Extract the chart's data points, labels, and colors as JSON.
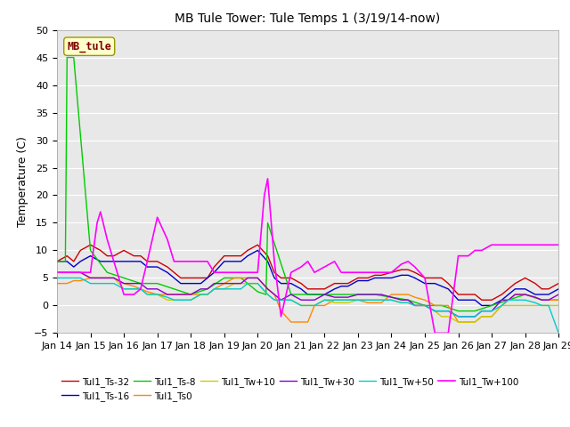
{
  "title": "MB Tule Tower: Tule Temps 1 (3/19/14-now)",
  "ylabel": "Temperature (C)",
  "ylim": [
    -5,
    50
  ],
  "yticks": [
    -5,
    0,
    5,
    10,
    15,
    20,
    25,
    30,
    35,
    40,
    45,
    50
  ],
  "xtick_labels": [
    "Jan 14",
    "Jan 15",
    "Jan 16",
    "Jan 17",
    "Jan 18",
    "Jan 19",
    "Jan 20",
    "Jan 21",
    "Jan 22",
    "Jan 23",
    "Jan 24",
    "Jan 25",
    "Jan 26",
    "Jan 27",
    "Jan 28",
    "Jan 29"
  ],
  "fig_bg": "#ffffff",
  "plot_bg": "#e8e8e8",
  "series_order": [
    "Tul1_Ts-32",
    "Tul1_Ts-16",
    "Tul1_Ts-8",
    "Tul1_Ts0",
    "Tul1_Tw+10",
    "Tul1_Tw+30",
    "Tul1_Tw+50",
    "Tul1_Tw+100"
  ],
  "legend_order": [
    "Tul1_Ts-32",
    "Tul1_Ts-16",
    "Tul1_Ts-8",
    "Tul1_Ts0",
    "Tul1_Tw+10",
    "Tul1_Tw+30",
    "Tul1_Tw+50",
    "Tul1_Tw+100"
  ],
  "series": {
    "Tul1_Ts-32": {
      "color": "#cc0000",
      "lw": 1.0
    },
    "Tul1_Ts-16": {
      "color": "#0000cc",
      "lw": 1.0
    },
    "Tul1_Ts-8": {
      "color": "#00cc00",
      "lw": 1.0
    },
    "Tul1_Ts0": {
      "color": "#ff8800",
      "lw": 1.0
    },
    "Tul1_Tw+10": {
      "color": "#cccc00",
      "lw": 1.0
    },
    "Tul1_Tw+30": {
      "color": "#8800cc",
      "lw": 1.0
    },
    "Tul1_Tw+50": {
      "color": "#00cccc",
      "lw": 1.0
    },
    "Tul1_Tw+100": {
      "color": "#ff00ff",
      "lw": 1.2
    }
  },
  "Tul1_Ts-32_x": [
    0,
    0.3,
    0.5,
    0.7,
    1,
    1.3,
    1.5,
    1.7,
    2,
    2.3,
    2.5,
    2.7,
    3,
    3.3,
    3.5,
    3.7,
    4,
    4.3,
    4.5,
    4.7,
    5,
    5.3,
    5.5,
    5.7,
    6,
    6.3,
    6.5,
    6.7,
    7,
    7.3,
    7.5,
    7.7,
    8,
    8.3,
    8.5,
    8.7,
    9,
    9.3,
    9.5,
    9.7,
    10,
    10.3,
    10.5,
    10.7,
    11,
    11.3,
    11.5,
    11.7,
    12,
    12.3,
    12.5,
    12.7,
    13,
    13.3,
    13.5,
    13.7,
    14,
    14.3,
    14.5,
    14.7,
    15
  ],
  "Tul1_Ts-32_y": [
    8,
    9,
    8,
    10,
    11,
    10,
    9,
    9,
    10,
    9,
    9,
    8,
    8,
    7,
    6,
    5,
    5,
    5,
    5,
    7,
    9,
    9,
    9,
    10,
    11,
    9,
    6,
    5,
    5,
    4,
    3,
    3,
    3,
    4,
    4,
    4,
    5,
    5,
    5.5,
    5.5,
    6,
    6.5,
    6.5,
    6,
    5,
    5,
    5,
    4,
    2,
    2,
    2,
    1,
    1,
    2,
    3,
    4,
    5,
    4,
    3,
    3,
    4
  ],
  "Tul1_Ts-16_x": [
    0,
    0.3,
    0.5,
    0.7,
    1,
    1.3,
    1.5,
    1.7,
    2,
    2.3,
    2.5,
    2.7,
    3,
    3.3,
    3.5,
    3.7,
    4,
    4.3,
    4.5,
    4.7,
    5,
    5.3,
    5.5,
    5.7,
    6,
    6.3,
    6.5,
    6.7,
    7,
    7.3,
    7.5,
    7.7,
    8,
    8.3,
    8.5,
    8.7,
    9,
    9.3,
    9.5,
    9.7,
    10,
    10.3,
    10.5,
    10.7,
    11,
    11.3,
    11.5,
    11.7,
    12,
    12.3,
    12.5,
    12.7,
    13,
    13.3,
    13.5,
    13.7,
    14,
    14.3,
    14.5,
    14.7,
    15
  ],
  "Tul1_Ts-16_y": [
    8,
    8,
    7,
    8,
    9,
    8,
    8,
    8,
    8,
    8,
    8,
    7,
    7,
    6,
    5,
    4,
    4,
    4,
    5,
    6,
    8,
    8,
    8,
    9,
    10,
    8,
    5,
    4,
    4,
    3,
    2,
    2,
    2,
    3,
    3.5,
    3.5,
    4.5,
    4.5,
    5,
    5,
    5,
    5.5,
    5.5,
    5,
    4,
    4,
    3.5,
    3,
    1,
    1,
    1,
    0,
    0,
    1,
    2,
    3,
    3,
    2,
    2,
    2,
    3
  ],
  "Tul1_Ts-8_x": [
    0,
    0.25,
    0.3,
    0.5,
    1,
    1.5,
    2,
    2.5,
    3,
    3.5,
    4,
    4.5,
    5,
    5.5,
    6,
    6.25,
    6.3,
    7,
    7.5,
    8,
    8.5,
    9,
    9.5,
    10,
    10.5,
    11,
    11.5,
    12,
    12.5,
    13,
    13.5,
    14,
    14.5,
    15
  ],
  "Tul1_Ts-8_y": [
    8,
    8,
    45,
    45,
    10,
    6,
    5,
    4,
    4,
    3,
    2,
    3,
    5,
    5,
    2.5,
    2,
    15,
    2,
    2,
    2,
    2,
    2,
    2,
    1.5,
    1,
    0,
    0,
    -1,
    -1,
    0,
    1,
    2,
    1,
    1
  ],
  "Tul1_Ts0_x": [
    0,
    0.3,
    0.5,
    0.7,
    1,
    1.3,
    1.5,
    1.7,
    2,
    2.3,
    2.5,
    2.7,
    3,
    3.3,
    3.5,
    3.7,
    4,
    4.3,
    4.5,
    4.7,
    5,
    5.3,
    5.5,
    5.7,
    6,
    6.3,
    6.5,
    6.7,
    7,
    7.3,
    7.5,
    7.7,
    8,
    8.3,
    8.5,
    8.7,
    9,
    9.3,
    9.5,
    9.7,
    10,
    10.3,
    10.5,
    10.7,
    11,
    11.3,
    11.5,
    11.7,
    12,
    12.3,
    12.5,
    12.7,
    13,
    13.3,
    13.5,
    13.7,
    14,
    14.3,
    14.5,
    14.7,
    15
  ],
  "Tul1_Ts0_y": [
    4,
    4,
    4.5,
    4.5,
    5,
    5,
    5,
    5,
    4,
    3.5,
    3,
    2.5,
    2,
    2,
    2,
    2,
    2,
    2,
    2,
    3,
    4,
    5,
    5,
    5,
    5,
    3,
    2,
    -1,
    -3,
    -3,
    -3,
    0,
    0,
    1,
    1,
    1,
    1,
    0.5,
    0.5,
    0.5,
    2,
    2,
    2,
    1.5,
    1,
    0,
    0,
    0,
    -3,
    -3,
    -3,
    -2,
    -2,
    0,
    1,
    2,
    2,
    1.5,
    1,
    1,
    1
  ],
  "Tul1_Tw+10_x": [
    0,
    0.3,
    0.5,
    0.7,
    1,
    1.3,
    1.5,
    1.7,
    2,
    2.3,
    2.5,
    2.7,
    3,
    3.3,
    3.5,
    3.7,
    4,
    4.3,
    4.5,
    4.7,
    5,
    5.3,
    5.5,
    5.7,
    6,
    6.3,
    6.5,
    6.7,
    7,
    7.3,
    7.5,
    7.7,
    8,
    8.3,
    8.5,
    8.7,
    9,
    9.3,
    9.5,
    9.7,
    10,
    10.3,
    10.5,
    10.7,
    11,
    11.3,
    11.5,
    11.7,
    12,
    12.3,
    12.5,
    12.7,
    13,
    13.3,
    13.5,
    13.7,
    14,
    14.3,
    14.5,
    14.7,
    15
  ],
  "Tul1_Tw+10_y": [
    6,
    6,
    6,
    6,
    5,
    5,
    5,
    5,
    3,
    3,
    3,
    2,
    2,
    1,
    1,
    1,
    1,
    2,
    2,
    3,
    3,
    4,
    4,
    4,
    4,
    2,
    1,
    1,
    1,
    0,
    0,
    0,
    1,
    0.5,
    0.5,
    0.5,
    1,
    1,
    1,
    1,
    1,
    0.5,
    0.5,
    0,
    0,
    -1,
    -2,
    -2,
    -3,
    -3,
    -3,
    -2,
    -2,
    0,
    0,
    0,
    0,
    0,
    0,
    0,
    0
  ],
  "Tul1_Tw+30_x": [
    0,
    0.3,
    0.5,
    0.7,
    1,
    1.3,
    1.5,
    1.7,
    2,
    2.3,
    2.5,
    2.7,
    3,
    3.3,
    3.5,
    3.7,
    4,
    4.3,
    4.5,
    4.7,
    5,
    5.3,
    5.5,
    5.7,
    6,
    6.3,
    6.5,
    6.7,
    7,
    7.3,
    7.5,
    7.7,
    8,
    8.3,
    8.5,
    8.7,
    9,
    9.3,
    9.5,
    9.7,
    10,
    10.3,
    10.5,
    10.7,
    11,
    11.3,
    11.5,
    11.7,
    12,
    12.3,
    12.5,
    12.7,
    13,
    13.3,
    13.5,
    13.7,
    14,
    14.3,
    14.5,
    14.7,
    15
  ],
  "Tul1_Tw+30_y": [
    6,
    6,
    6,
    6,
    5,
    5,
    5,
    5,
    4,
    4,
    4,
    3,
    3,
    2,
    2,
    2,
    2,
    3,
    3,
    4,
    4,
    4,
    4,
    5,
    5,
    3,
    2,
    1,
    2,
    1,
    1,
    1,
    2,
    1.5,
    1.5,
    1.5,
    2,
    2,
    2,
    2,
    1.5,
    1,
    1,
    0,
    0,
    -1,
    -1,
    -1,
    -2,
    -2,
    -2,
    -1,
    -1,
    1,
    1,
    2,
    2,
    1.5,
    1,
    1,
    2
  ],
  "Tul1_Tw+50_x": [
    0,
    0.3,
    0.5,
    0.7,
    1,
    1.3,
    1.5,
    1.7,
    2,
    2.3,
    2.5,
    2.7,
    3,
    3.3,
    3.5,
    3.7,
    4,
    4.3,
    4.5,
    4.7,
    5,
    5.3,
    5.5,
    5.7,
    6,
    6.3,
    6.5,
    6.7,
    7,
    7.3,
    7.5,
    7.7,
    8,
    8.3,
    8.5,
    8.7,
    9,
    9.3,
    9.5,
    9.7,
    10,
    10.3,
    10.5,
    10.7,
    11,
    11.3,
    11.5,
    11.7,
    12,
    12.3,
    12.5,
    12.7,
    13,
    13.3,
    13.5,
    13.7,
    14,
    14.3,
    14.5,
    14.7,
    15
  ],
  "Tul1_Tw+50_y": [
    5,
    5,
    5,
    5,
    4,
    4,
    4,
    4,
    3,
    3,
    3,
    2,
    2,
    1.5,
    1,
    1,
    1,
    2,
    2,
    3,
    3,
    3,
    3,
    4,
    4,
    2,
    1,
    1,
    1,
    0,
    0,
    0,
    1,
    1,
    1,
    1,
    1,
    1,
    1,
    1,
    1,
    0.5,
    0.5,
    0,
    0,
    -1,
    -1,
    -1,
    -2,
    -2,
    -2,
    -1,
    -1,
    0,
    1,
    1,
    1,
    0.5,
    0,
    0,
    -5
  ],
  "Tul1_Tw+100_x": [
    0,
    0.3,
    0.5,
    0.7,
    1,
    1.2,
    1.3,
    1.5,
    1.7,
    2,
    2.3,
    2.5,
    2.7,
    3,
    3.3,
    3.5,
    3.7,
    4,
    4.3,
    4.5,
    4.7,
    5,
    5.3,
    5.5,
    5.7,
    6,
    6.2,
    6.3,
    6.5,
    6.7,
    7,
    7.3,
    7.5,
    7.7,
    8,
    8.3,
    8.5,
    8.7,
    9,
    9.3,
    9.5,
    9.7,
    10,
    10.2,
    10.3,
    10.5,
    10.7,
    11,
    11.3,
    11.5,
    11.7,
    12,
    12.3,
    12.5,
    12.7,
    13,
    13.3,
    13.5,
    13.7,
    14,
    14.3,
    14.5,
    14.7,
    15
  ],
  "Tul1_Tw+100_y": [
    6,
    6,
    6,
    6,
    6,
    15,
    17,
    12,
    8,
    2,
    2,
    3,
    8,
    16,
    12,
    8,
    8,
    8,
    8,
    8,
    6,
    6,
    6,
    6,
    6,
    6,
    20,
    23,
    8,
    -2,
    6,
    7,
    8,
    6,
    7,
    8,
    6,
    6,
    6,
    6,
    6,
    6,
    6,
    7,
    7.5,
    8,
    7,
    5,
    -5,
    -5,
    -5,
    9,
    9,
    10,
    10,
    11,
    11,
    11,
    11,
    11,
    11,
    11,
    11,
    11
  ]
}
